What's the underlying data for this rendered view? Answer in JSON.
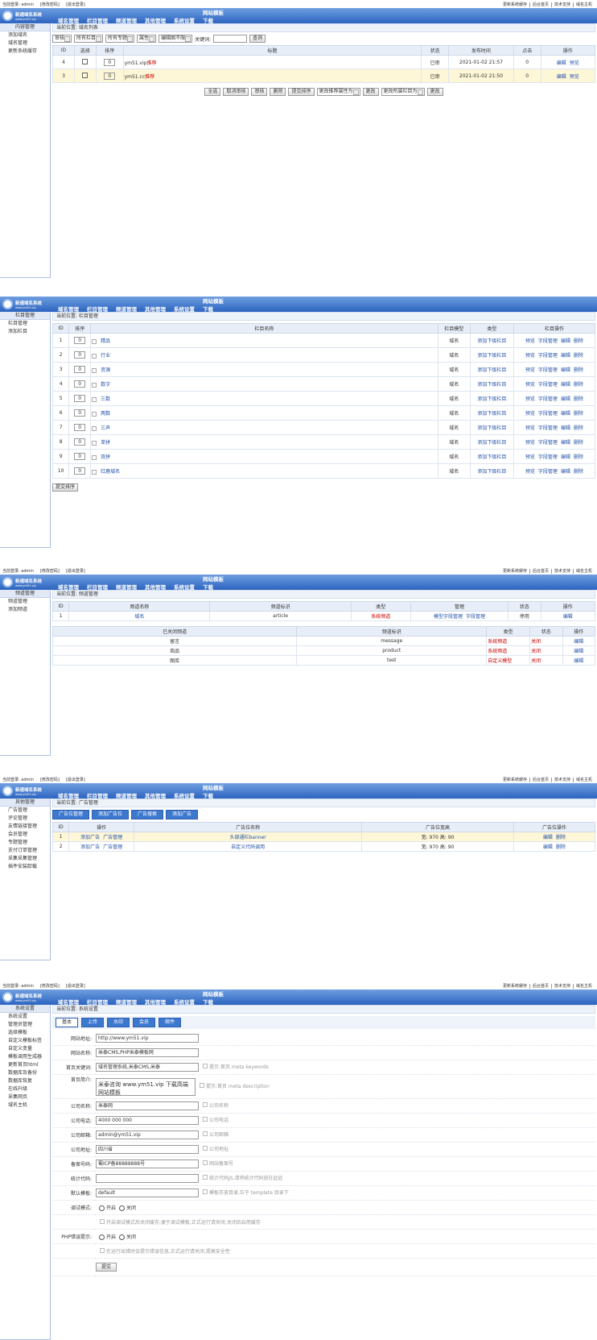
{
  "topbar": {
    "left": [
      "当前登录: admin",
      "[修改密码]",
      "[退出登录]"
    ],
    "right": [
      "更新系统缓存",
      "后台首页",
      "技术支持",
      "域名主机"
    ]
  },
  "logo": {
    "title": "新通域名系统",
    "url": "www.ym51.vip"
  },
  "nav": [
    "域名管理",
    "栏目管理",
    "频道管理",
    "其他管理",
    "系统设置",
    "网站模板下载"
  ],
  "panels": [
    {
      "sidebar": {
        "title": "内容管理",
        "items": [
          "添加域名",
          "域名管理",
          "更新系统缓存"
        ]
      },
      "breadcrumb": "当前位置: 域名列表",
      "blocks": [
        {
          "filters": {
            "selects": [
              "审核",
              "所有栏目",
              "所有专题",
              "属性",
              "编辑图不限"
            ],
            "label": "关键词:",
            "button": "查询"
          }
        },
        {
          "table": {
            "columns": [
              "ID",
              "选择",
              "排序",
              "标题",
              "状态",
              "发布时间",
              "点击",
              "操作"
            ],
            "rows": [
              [
                "4",
                "0",
                [
                  "ym51.vip",
                  "推荐"
                ],
                "已审",
                "2021-01-02 21:57",
                "0",
                [
                  "编辑",
                  "预览"
                ]
              ],
              [
                "3",
                "0",
                [
                  "ym51.cc",
                  "推荐"
                ],
                "已审",
                "2021-01-02 21:50",
                "0",
                [
                  "编辑",
                  "预览"
                ]
              ]
            ]
          }
        },
        {
          "controls": [
            "全选",
            "取消审核",
            "审核",
            "删除",
            "提交排序",
            "更改推荐属性为",
            "更改",
            "更改所属栏目为",
            "更改"
          ]
        }
      ]
    },
    {
      "sidebar": {
        "title": "栏目管理",
        "items": [
          "栏目管理",
          "添加栏目"
        ]
      },
      "breadcrumb": "当前位置: 栏目管理",
      "blocks": [
        {
          "table": {
            "columns": [
              "ID",
              "排序",
              "栏目名称",
              "栏目模型",
              "类型",
              "栏目操作"
            ],
            "rows": [
              [
                "1",
                "0",
                "精品",
                "域名",
                "添加下级栏目",
                [
                  "预览",
                  "字段管理",
                  "编辑",
                  "删除"
                ]
              ],
              [
                "2",
                "0",
                "行业",
                "域名",
                "添加下级栏目",
                [
                  "预览",
                  "字段管理",
                  "编辑",
                  "删除"
                ]
              ],
              [
                "3",
                "0",
                "资源",
                "域名",
                "添加下级栏目",
                [
                  "预览",
                  "字段管理",
                  "编辑",
                  "删除"
                ]
              ],
              [
                "4",
                "0",
                "数字",
                "域名",
                "添加下级栏目",
                [
                  "预览",
                  "字段管理",
                  "编辑",
                  "删除"
                ]
              ],
              [
                "5",
                "0",
                "三数",
                "域名",
                "添加下级栏目",
                [
                  "预览",
                  "字段管理",
                  "编辑",
                  "删除"
                ]
              ],
              [
                "6",
                "0",
                "两数",
                "域名",
                "添加下级栏目",
                [
                  "预览",
                  "字段管理",
                  "编辑",
                  "删除"
                ]
              ],
              [
                "7",
                "0",
                "三声",
                "域名",
                "添加下级栏目",
                [
                  "预览",
                  "字段管理",
                  "编辑",
                  "删除"
                ]
              ],
              [
                "8",
                "0",
                "单拼",
                "域名",
                "添加下级栏目",
                [
                  "预览",
                  "字段管理",
                  "编辑",
                  "删除"
                ]
              ],
              [
                "9",
                "0",
                "双拼",
                "域名",
                "添加下级栏目",
                [
                  "预览",
                  "字段管理",
                  "编辑",
                  "删除"
                ]
              ],
              [
                "10",
                "0",
                "红鹿域名",
                "域名",
                "添加下级栏目",
                [
                  "预览",
                  "字段管理",
                  "编辑",
                  "删除"
                ]
              ]
            ]
          }
        },
        {
          "controls": [
            "提交排序"
          ]
        }
      ]
    },
    {
      "sidebar": {
        "title": "频道管理",
        "items": [
          "频道管理",
          "添加频道"
        ]
      },
      "breadcrumb": "当前位置: 频道管理",
      "blocks": [
        {
          "table": {
            "columns": [
              "ID",
              "频道名称",
              "频道标识",
              "类型",
              "管理",
              "状态",
              "操作"
            ],
            "rows": [
              [
                "1",
                "域名",
                "article",
                "系统频道",
                [
                  "模型字段管理",
                  "字段管理"
                ],
                "停用",
                "编辑"
              ]
            ]
          }
        },
        {
          "table": {
            "columns": [
              "已关闭频道",
              "频道标识",
              "类型",
              "状态",
              "操作"
            ],
            "rows": [
              [
                "留言",
                "message",
                "系统频道",
                "关闭",
                "编辑"
              ],
              [
                "商品",
                "product",
                "系统频道",
                "关闭",
                "编辑"
              ],
              [
                "图库",
                "test",
                "自定义模型",
                "关闭",
                "编辑"
              ]
            ]
          }
        }
      ]
    },
    {
      "sidebar": {
        "title": "其他管理",
        "items": [
          "广告管理",
          "评论管理",
          "友情链接管理",
          "会员管理",
          "专题管理",
          "支付订单管理",
          "采集采集管理",
          "插件安装卸载"
        ]
      },
      "breadcrumb": "当前位置: 广告管理",
      "blocks": [
        {
          "tabs": [
            "广告位管理",
            "添加广告位",
            "广告搜索",
            "添加广告"
          ]
        },
        {
          "table": {
            "columns": [
              "ID",
              "操作",
              "广告位名称",
              "广告位宽高",
              "广告位操作"
            ],
            "rows": [
              [
                "1",
                [
                  "添加广告",
                  "广告管理"
                ],
                "头部通栏banner",
                "宽: 970  高: 90",
                [
                  "编辑",
                  "删除"
                ]
              ],
              [
                "2",
                [
                  "添加广告",
                  "广告管理"
                ],
                "自定义代码调用",
                "宽: 970  高: 90",
                [
                  "编辑",
                  "删除"
                ]
              ]
            ]
          }
        }
      ]
    },
    {
      "sidebar": {
        "title": "系统设置",
        "items": [
          "系统设置",
          "管理员管理",
          "选择模板",
          "自定义模板标签",
          "自定义变量",
          "模板调用生成器",
          "更新首页html",
          "数据库及备份",
          "数据库恢复",
          "在线升级",
          "采集网页",
          "域名主机"
        ]
      },
      "breadcrumb": "当前位置: 系统设置",
      "blocks": [
        {
          "tabs": [
            "基本",
            "上传",
            "水印",
            "会员",
            "邮件"
          ]
        },
        {
          "form": {
            "rows": [
              {
                "label": "网站地址:",
                "value": "http://www.ym51.vip"
              },
              {
                "label": "网站名称:",
                "value": "米泰CMS,PHP米泰模板网"
              },
              {
                "label": "首页关键词:",
                "value": "域名管理系统,米泰CMS,米泰",
                "hint": "提示:首页 meta keywords"
              },
              {
                "label": "首页简介:",
                "text": "米泰咨询 www.ym51.vip 下载高端网站模板",
                "hint": "提示:首页 meta description"
              },
              {
                "label": "公司名称:",
                "value": "米泰网",
                "hint": "公司名称"
              },
              {
                "label": "公司电话:",
                "value": "4000 000 000",
                "hint": "公司电话"
              },
              {
                "label": "公司邮箱:",
                "value": "admin@ym51.vip",
                "hint": "公司邮箱"
              },
              {
                "label": "公司地址:",
                "value": "四川省",
                "hint": "公司地址"
              },
              {
                "label": "备案号码:",
                "value": "蜀ICP备88888888号",
                "hint": "网站备案号"
              },
              {
                "label": "统计代码:",
                "value": "",
                "hint": "统计代码JS,请将统计代码放在此处"
              },
              {
                "label": "默认模板:",
                "value": "default",
                "hint": "模板存放目录,位于 template 目录下"
              },
              {
                "label": "调试模式:",
                "options": [
                  "开启",
                  "关闭"
                ]
              },
              {
                "note": "开启调试模式后关闭缓存,便于调试模板;正式运行请关闭,关闭后启用缓存"
              },
              {
                "label": "PHP错误提示:",
                "options": [
                  "开启",
                  "关闭"
                ]
              },
              {
                "note": "在运行出错时会提示错误信息,正式运行请关闭,提高安全性"
              }
            ],
            "submit": "提交"
          }
        }
      ]
    }
  ]
}
